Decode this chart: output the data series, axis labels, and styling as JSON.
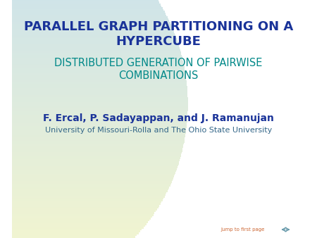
{
  "title_line1": "PARALLEL GRAPH PARTITIONING ON A",
  "title_line2": "HYPERCUBE",
  "subtitle_line1": "DISTRIBUTED GENERATION OF PAIRWISE",
  "subtitle_line2": "COMBINATIONS",
  "author": "F. Ercal, P. Sadayappan, and J. Ramanujan",
  "affiliation": "University of Missouri-Rolla and The Ohio State University",
  "jump_text": "Jump to first page",
  "title_color": "#1a3399",
  "subtitle_color": "#008888",
  "author_color": "#1a3399",
  "affiliation_color": "#336688",
  "jump_color": "#cc6633",
  "bg_color": "#ffffff",
  "circle_top_color": "#c5dff0",
  "circle_bottom_color": "#f8f8cc",
  "title_fontsize": 13,
  "subtitle_fontsize": 10.5,
  "author_fontsize": 10,
  "affiliation_fontsize": 8
}
